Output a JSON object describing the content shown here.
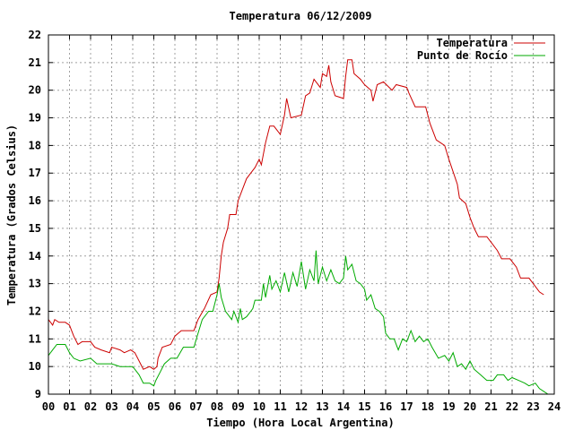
{
  "chart_data": {
    "type": "line",
    "title": "Temperatura 06/12/2009",
    "xlabel": "Tiempo (Hora Local Argentina)",
    "ylabel": "Temperatura (Grados Celsius)",
    "xlim": [
      0,
      24
    ],
    "ylim": [
      9,
      22
    ],
    "xticks": [
      "00",
      "01",
      "02",
      "03",
      "04",
      "05",
      "06",
      "07",
      "08",
      "09",
      "10",
      "11",
      "12",
      "13",
      "14",
      "15",
      "16",
      "17",
      "18",
      "19",
      "20",
      "21",
      "22",
      "23",
      "24"
    ],
    "yticks": [
      "9",
      "10",
      "11",
      "12",
      "13",
      "14",
      "15",
      "16",
      "17",
      "18",
      "19",
      "20",
      "21",
      "22"
    ],
    "grid": true,
    "legend_position": "top-right",
    "series": [
      {
        "name": "Temperatura",
        "color": "#cc0000",
        "points": [
          [
            0.0,
            11.7
          ],
          [
            0.1,
            11.6
          ],
          [
            0.2,
            11.5
          ],
          [
            0.3,
            11.7
          ],
          [
            0.5,
            11.6
          ],
          [
            0.8,
            11.6
          ],
          [
            1.0,
            11.5
          ],
          [
            1.2,
            11.1
          ],
          [
            1.4,
            10.8
          ],
          [
            1.6,
            10.9
          ],
          [
            2.0,
            10.9
          ],
          [
            2.2,
            10.7
          ],
          [
            2.5,
            10.6
          ],
          [
            2.9,
            10.5
          ],
          [
            3.0,
            10.7
          ],
          [
            3.4,
            10.6
          ],
          [
            3.6,
            10.5
          ],
          [
            3.9,
            10.6
          ],
          [
            4.1,
            10.5
          ],
          [
            4.3,
            10.2
          ],
          [
            4.5,
            9.9
          ],
          [
            4.8,
            10.0
          ],
          [
            5.0,
            9.9
          ],
          [
            5.15,
            10.0
          ],
          [
            5.2,
            10.3
          ],
          [
            5.4,
            10.7
          ],
          [
            5.8,
            10.8
          ],
          [
            6.0,
            11.1
          ],
          [
            6.3,
            11.3
          ],
          [
            6.9,
            11.3
          ],
          [
            7.1,
            11.7
          ],
          [
            7.4,
            12.1
          ],
          [
            7.7,
            12.6
          ],
          [
            8.0,
            12.7
          ],
          [
            8.1,
            13.2
          ],
          [
            8.2,
            14.0
          ],
          [
            8.3,
            14.5
          ],
          [
            8.5,
            15.0
          ],
          [
            8.6,
            15.5
          ],
          [
            8.9,
            15.5
          ],
          [
            9.0,
            16.0
          ],
          [
            9.2,
            16.4
          ],
          [
            9.4,
            16.8
          ],
          [
            9.6,
            17.0
          ],
          [
            9.8,
            17.2
          ],
          [
            10.0,
            17.5
          ],
          [
            10.1,
            17.3
          ],
          [
            10.3,
            18.1
          ],
          [
            10.5,
            18.7
          ],
          [
            10.7,
            18.7
          ],
          [
            11.0,
            18.4
          ],
          [
            11.2,
            19.1
          ],
          [
            11.3,
            19.7
          ],
          [
            11.5,
            19.0
          ],
          [
            12.0,
            19.1
          ],
          [
            12.2,
            19.8
          ],
          [
            12.4,
            19.9
          ],
          [
            12.6,
            20.4
          ],
          [
            12.9,
            20.1
          ],
          [
            13.0,
            20.6
          ],
          [
            13.2,
            20.5
          ],
          [
            13.3,
            20.9
          ],
          [
            13.4,
            20.3
          ],
          [
            13.6,
            19.8
          ],
          [
            14.0,
            19.7
          ],
          [
            14.1,
            20.5
          ],
          [
            14.2,
            21.1
          ],
          [
            14.4,
            21.1
          ],
          [
            14.5,
            20.6
          ],
          [
            14.8,
            20.4
          ],
          [
            15.0,
            20.2
          ],
          [
            15.3,
            20.0
          ],
          [
            15.4,
            19.6
          ],
          [
            15.6,
            20.2
          ],
          [
            15.9,
            20.3
          ],
          [
            16.3,
            20.0
          ],
          [
            16.5,
            20.2
          ],
          [
            17.0,
            20.1
          ],
          [
            17.1,
            19.9
          ],
          [
            17.4,
            19.4
          ],
          [
            17.9,
            19.4
          ],
          [
            18.1,
            18.8
          ],
          [
            18.4,
            18.2
          ],
          [
            18.8,
            18.0
          ],
          [
            19.0,
            17.5
          ],
          [
            19.4,
            16.6
          ],
          [
            19.5,
            16.1
          ],
          [
            19.8,
            15.9
          ],
          [
            20.0,
            15.4
          ],
          [
            20.2,
            15.0
          ],
          [
            20.4,
            14.7
          ],
          [
            20.8,
            14.7
          ],
          [
            21.0,
            14.5
          ],
          [
            21.3,
            14.2
          ],
          [
            21.5,
            13.9
          ],
          [
            21.9,
            13.9
          ],
          [
            22.2,
            13.6
          ],
          [
            22.4,
            13.2
          ],
          [
            22.8,
            13.2
          ],
          [
            23.0,
            13.0
          ],
          [
            23.3,
            12.7
          ],
          [
            23.5,
            12.6
          ]
        ]
      },
      {
        "name": "Punto de Rocío",
        "color": "#00aa00",
        "points": [
          [
            0.0,
            10.4
          ],
          [
            0.2,
            10.6
          ],
          [
            0.4,
            10.8
          ],
          [
            0.8,
            10.8
          ],
          [
            1.0,
            10.5
          ],
          [
            1.2,
            10.3
          ],
          [
            1.5,
            10.2
          ],
          [
            2.0,
            10.3
          ],
          [
            2.3,
            10.1
          ],
          [
            3.0,
            10.1
          ],
          [
            3.4,
            10.0
          ],
          [
            4.0,
            10.0
          ],
          [
            4.3,
            9.7
          ],
          [
            4.5,
            9.4
          ],
          [
            4.8,
            9.4
          ],
          [
            5.0,
            9.3
          ],
          [
            5.1,
            9.5
          ],
          [
            5.3,
            9.8
          ],
          [
            5.5,
            10.1
          ],
          [
            5.8,
            10.3
          ],
          [
            6.1,
            10.3
          ],
          [
            6.4,
            10.7
          ],
          [
            6.9,
            10.7
          ],
          [
            7.1,
            11.2
          ],
          [
            7.3,
            11.7
          ],
          [
            7.6,
            12.0
          ],
          [
            7.8,
            12.0
          ],
          [
            8.0,
            12.6
          ],
          [
            8.1,
            13.0
          ],
          [
            8.2,
            12.5
          ],
          [
            8.4,
            12.0
          ],
          [
            8.7,
            11.7
          ],
          [
            8.8,
            12.0
          ],
          [
            9.0,
            11.6
          ],
          [
            9.1,
            12.1
          ],
          [
            9.2,
            11.7
          ],
          [
            9.4,
            11.8
          ],
          [
            9.6,
            12.0
          ],
          [
            9.7,
            12.1
          ],
          [
            9.8,
            12.4
          ],
          [
            10.1,
            12.4
          ],
          [
            10.2,
            13.0
          ],
          [
            10.3,
            12.5
          ],
          [
            10.5,
            13.3
          ],
          [
            10.6,
            12.8
          ],
          [
            10.8,
            13.1
          ],
          [
            11.0,
            12.7
          ],
          [
            11.2,
            13.4
          ],
          [
            11.4,
            12.7
          ],
          [
            11.6,
            13.4
          ],
          [
            11.8,
            12.9
          ],
          [
            12.0,
            13.8
          ],
          [
            12.2,
            12.8
          ],
          [
            12.4,
            13.5
          ],
          [
            12.6,
            13.1
          ],
          [
            12.7,
            14.2
          ],
          [
            12.8,
            13.0
          ],
          [
            13.0,
            13.6
          ],
          [
            13.2,
            13.1
          ],
          [
            13.4,
            13.5
          ],
          [
            13.6,
            13.1
          ],
          [
            13.8,
            13.0
          ],
          [
            14.0,
            13.2
          ],
          [
            14.1,
            14.0
          ],
          [
            14.2,
            13.5
          ],
          [
            14.4,
            13.7
          ],
          [
            14.6,
            13.1
          ],
          [
            14.8,
            13.0
          ],
          [
            15.0,
            12.8
          ],
          [
            15.1,
            12.4
          ],
          [
            15.3,
            12.6
          ],
          [
            15.5,
            12.1
          ],
          [
            15.7,
            12.0
          ],
          [
            15.9,
            11.8
          ],
          [
            16.0,
            11.2
          ],
          [
            16.2,
            11.0
          ],
          [
            16.4,
            11.0
          ],
          [
            16.6,
            10.6
          ],
          [
            16.8,
            11.0
          ],
          [
            17.0,
            10.9
          ],
          [
            17.2,
            11.3
          ],
          [
            17.4,
            10.9
          ],
          [
            17.6,
            11.1
          ],
          [
            17.8,
            10.9
          ],
          [
            18.0,
            11.0
          ],
          [
            18.2,
            10.7
          ],
          [
            18.5,
            10.3
          ],
          [
            18.8,
            10.4
          ],
          [
            19.0,
            10.2
          ],
          [
            19.2,
            10.5
          ],
          [
            19.4,
            10.0
          ],
          [
            19.6,
            10.1
          ],
          [
            19.8,
            9.9
          ],
          [
            20.0,
            10.2
          ],
          [
            20.2,
            9.9
          ],
          [
            20.5,
            9.7
          ],
          [
            20.8,
            9.5
          ],
          [
            21.1,
            9.5
          ],
          [
            21.3,
            9.7
          ],
          [
            21.6,
            9.7
          ],
          [
            21.8,
            9.5
          ],
          [
            22.0,
            9.6
          ],
          [
            22.3,
            9.5
          ],
          [
            22.6,
            9.4
          ],
          [
            22.8,
            9.3
          ],
          [
            23.1,
            9.4
          ],
          [
            23.3,
            9.2
          ],
          [
            23.5,
            9.1
          ],
          [
            23.7,
            9.0
          ]
        ]
      }
    ]
  }
}
